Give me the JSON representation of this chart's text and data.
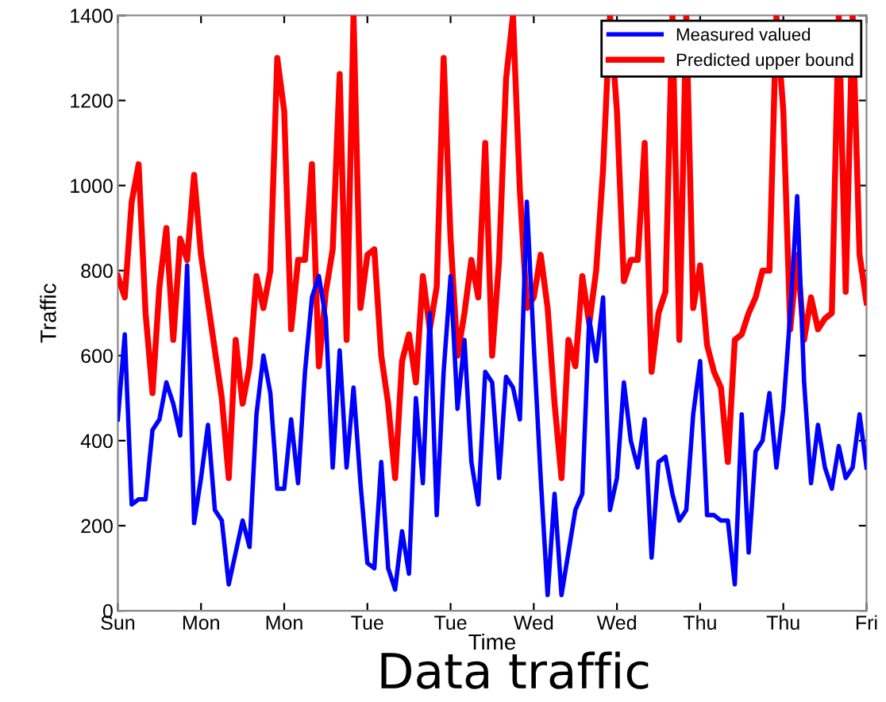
{
  "chart_data": {
    "type": "line",
    "title": "Data traffic",
    "xlabel": "Time",
    "ylabel": "Traffic",
    "categories": [
      "Sun",
      null,
      null,
      null,
      null,
      null,
      null,
      null,
      null,
      null,
      null,
      null,
      "Mon",
      null,
      null,
      null,
      null,
      null,
      null,
      null,
      null,
      null,
      null,
      null,
      "Mon",
      null,
      null,
      null,
      null,
      null,
      null,
      null,
      null,
      null,
      null,
      null,
      "Tue",
      null,
      null,
      null,
      null,
      null,
      null,
      null,
      null,
      null,
      null,
      null,
      "Tue",
      null,
      null,
      null,
      null,
      null,
      null,
      null,
      null,
      null,
      null,
      null,
      "Wed",
      null,
      null,
      null,
      null,
      null,
      null,
      null,
      null,
      null,
      null,
      null,
      "Wed",
      null,
      null,
      null,
      null,
      null,
      null,
      null,
      null,
      null,
      null,
      null,
      "Thu",
      null,
      null,
      null,
      null,
      null,
      null,
      null,
      null,
      null,
      null,
      null,
      "Thu",
      null,
      null,
      null,
      null,
      null,
      null,
      null,
      null,
      null,
      null,
      null,
      "Fri"
    ],
    "ylim": [
      0,
      1400
    ],
    "yticks": [
      0,
      200,
      400,
      600,
      800,
      1000,
      1200,
      1400
    ],
    "grid": false,
    "legend": "top right",
    "marker": "none",
    "line_style": "solid",
    "series": [
      {
        "name": "Measured valued",
        "color": "#0000ff",
        "values": [
          450,
          650,
          250,
          262,
          262,
          425,
          450,
          537,
          487,
          412,
          812,
          206,
          312,
          437,
          237,
          212,
          62,
          137,
          212,
          150,
          462,
          600,
          512,
          287,
          287,
          450,
          300,
          562,
          737,
          787,
          687,
          337,
          612,
          337,
          525,
          300,
          112,
          100,
          350,
          100,
          50,
          187,
          87,
          500,
          300,
          700,
          225,
          562,
          787,
          475,
          637,
          350,
          250,
          562,
          537,
          312,
          550,
          525,
          450,
          962,
          625,
          312,
          37,
          275,
          37,
          137,
          237,
          275,
          687,
          587,
          737,
          237,
          312,
          537,
          400,
          337,
          450,
          125,
          350,
          362,
          275,
          212,
          237,
          462,
          587,
          225,
          225,
          212,
          212,
          62,
          462,
          137,
          375,
          400,
          512,
          337,
          475,
          700,
          975,
          537,
          300,
          437,
          337,
          287,
          387,
          312,
          337,
          462,
          337
        ]
      },
      {
        "name": "Predicted upper bound",
        "color": "#ff0000",
        "values": [
          787,
          737,
          962,
          1050,
          700,
          512,
          762,
          900,
          637,
          875,
          825,
          1025,
          837,
          725,
          612,
          500,
          312,
          637,
          487,
          575,
          787,
          712,
          800,
          1300,
          1175,
          662,
          825,
          825,
          1050,
          575,
          750,
          850,
          1262,
          637,
          1400,
          712,
          837,
          850,
          600,
          487,
          312,
          587,
          650,
          537,
          787,
          662,
          762,
          1300,
          875,
          600,
          700,
          825,
          737,
          1100,
          600,
          825,
          1250,
          1400,
          987,
          712,
          737,
          837,
          712,
          487,
          312,
          637,
          575,
          787,
          675,
          800,
          1037,
          1400,
          1175,
          775,
          825,
          825,
          1100,
          562,
          700,
          750,
          1400,
          637,
          1400,
          712,
          812,
          625,
          562,
          525,
          350,
          637,
          650,
          700,
          737,
          800,
          800,
          1400,
          1175,
          662,
          837,
          637,
          737,
          662,
          687,
          700,
          1400,
          750,
          1400,
          837,
          725
        ]
      }
    ]
  }
}
